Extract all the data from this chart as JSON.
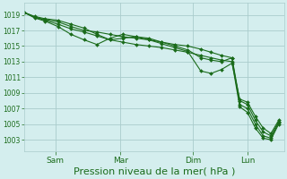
{
  "background_color": "#d4eeee",
  "grid_color": "#aacccc",
  "line_color": "#1a6b1a",
  "marker_color": "#1a6b1a",
  "xlabel": "Pression niveau de la mer( hPa )",
  "xlabel_fontsize": 8,
  "yticks": [
    1003,
    1005,
    1007,
    1009,
    1011,
    1013,
    1015,
    1017,
    1019
  ],
  "ylim": [
    1001.5,
    1020.5
  ],
  "xtick_labels": [
    "Sam",
    "Mar",
    "Dim",
    "Lun"
  ],
  "xtick_positions": [
    0.12,
    0.37,
    0.65,
    0.86
  ],
  "series": [
    {
      "x": [
        0.0,
        0.04,
        0.08,
        0.13,
        0.18,
        0.23,
        0.28,
        0.33,
        0.38,
        0.43,
        0.48,
        0.53,
        0.58,
        0.63,
        0.68,
        0.72,
        0.76,
        0.8,
        0.83,
        0.86,
        0.89,
        0.92,
        0.95,
        0.98
      ],
      "y": [
        1019.3,
        1018.8,
        1018.5,
        1018.3,
        1017.8,
        1017.3,
        1016.5,
        1015.8,
        1015.5,
        1015.2,
        1015.0,
        1014.8,
        1014.5,
        1014.2,
        1013.8,
        1013.5,
        1013.2,
        1013.0,
        1007.2,
        1006.5,
        1004.5,
        1003.2,
        1003.0,
        1005.0
      ]
    },
    {
      "x": [
        0.0,
        0.04,
        0.08,
        0.13,
        0.18,
        0.23,
        0.28,
        0.33,
        0.38,
        0.43,
        0.48,
        0.53,
        0.58,
        0.63,
        0.68,
        0.72,
        0.76,
        0.8,
        0.83,
        0.86,
        0.89,
        0.92,
        0.95,
        0.98
      ],
      "y": [
        1019.3,
        1018.7,
        1018.4,
        1018.1,
        1017.5,
        1017.0,
        1016.8,
        1016.5,
        1016.2,
        1016.0,
        1015.8,
        1015.5,
        1015.2,
        1015.0,
        1014.6,
        1014.2,
        1013.8,
        1013.5,
        1007.5,
        1007.0,
        1005.0,
        1003.5,
        1003.2,
        1005.2
      ]
    },
    {
      "x": [
        0.0,
        0.04,
        0.08,
        0.13,
        0.18,
        0.23,
        0.28,
        0.33,
        0.38,
        0.43,
        0.48,
        0.53,
        0.58,
        0.63,
        0.68,
        0.72,
        0.76,
        0.8,
        0.83,
        0.86,
        0.89,
        0.92,
        0.95,
        0.98
      ],
      "y": [
        1019.3,
        1018.7,
        1018.3,
        1017.8,
        1017.2,
        1016.8,
        1016.3,
        1015.8,
        1016.0,
        1016.2,
        1016.0,
        1015.5,
        1015.0,
        1014.5,
        1013.5,
        1013.2,
        1013.0,
        1013.5,
        1008.0,
        1007.5,
        1005.5,
        1004.0,
        1003.5,
        1005.3
      ]
    },
    {
      "x": [
        0.0,
        0.04,
        0.08,
        0.13,
        0.18,
        0.23,
        0.28,
        0.33,
        0.38,
        0.43,
        0.48,
        0.53,
        0.58,
        0.63,
        0.68,
        0.72,
        0.76,
        0.8,
        0.83,
        0.86,
        0.89,
        0.92,
        0.95,
        0.98
      ],
      "y": [
        1019.3,
        1018.6,
        1018.2,
        1017.5,
        1016.5,
        1015.8,
        1015.2,
        1016.0,
        1016.5,
        1016.2,
        1015.8,
        1015.3,
        1014.8,
        1014.3,
        1011.8,
        1011.5,
        1012.0,
        1012.8,
        1008.2,
        1007.8,
        1006.0,
        1004.5,
        1003.8,
        1005.5
      ]
    }
  ]
}
